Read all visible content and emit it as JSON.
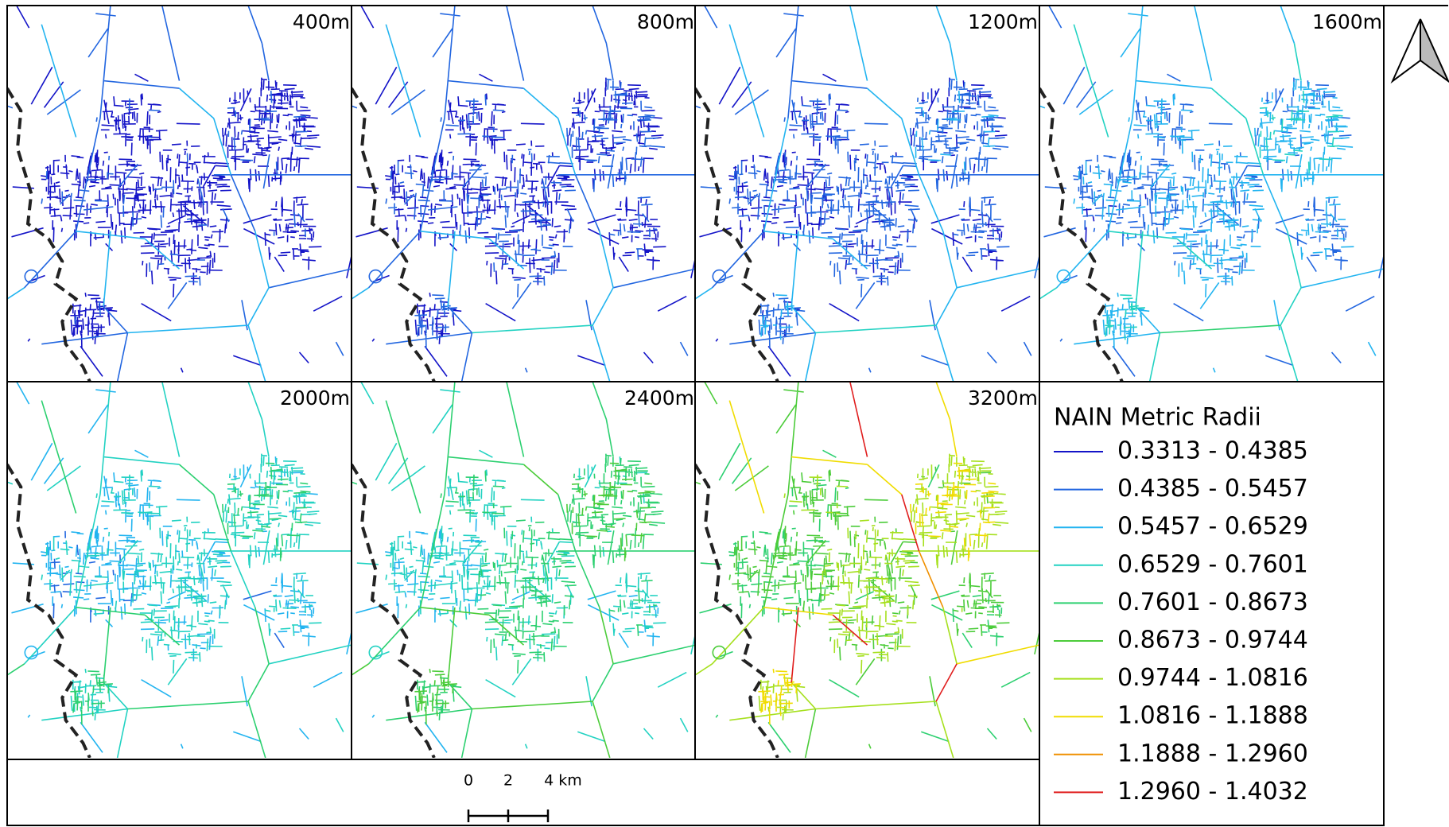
{
  "panels": [
    {
      "label": "400m"
    },
    {
      "label": "800m"
    },
    {
      "label": "1200m"
    },
    {
      "label": "1600m"
    },
    {
      "label": "2000m"
    },
    {
      "label": "2400m"
    },
    {
      "label": "3200m"
    }
  ],
  "legend": {
    "title": "NAIN Metric Radii",
    "items": [
      {
        "label": "0.3313 - 0.4385",
        "color": "#1414c8"
      },
      {
        "label": "0.4385 - 0.5457",
        "color": "#2266e0"
      },
      {
        "label": "0.5457 - 0.6529",
        "color": "#22b4f0"
      },
      {
        "label": "0.6529 - 0.7601",
        "color": "#22d2c2"
      },
      {
        "label": "0.7601 - 0.8673",
        "color": "#2cd070"
      },
      {
        "label": "0.8673 - 0.9744",
        "color": "#4ccc3a"
      },
      {
        "label": "0.9744 - 1.0816",
        "color": "#a6e01e"
      },
      {
        "label": "1.0816 - 1.1888",
        "color": "#f0dc00"
      },
      {
        "label": "1.1888 - 1.2960",
        "color": "#f09000"
      },
      {
        "label": "1.2960 - 1.4032",
        "color": "#e01e1e"
      }
    ]
  },
  "scale_bar": {
    "labels": [
      "0",
      "2",
      "4 km"
    ]
  }
}
